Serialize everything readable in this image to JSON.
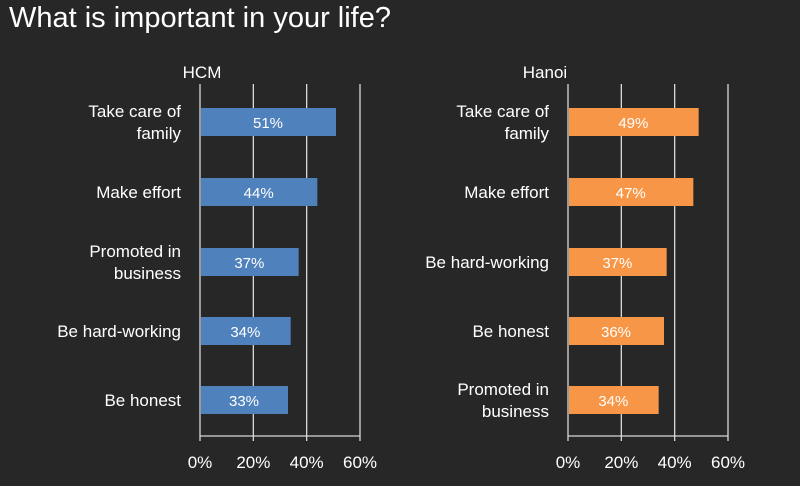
{
  "page": {
    "title": "What is important in your life?"
  },
  "chart_data": [
    {
      "type": "bar",
      "orientation": "horizontal",
      "title": "HCM",
      "color": "#4f81bd",
      "categories": [
        "Take care of family",
        "Make effort",
        "Promoted in business",
        "Be hard-working",
        "Be honest"
      ],
      "category_lines": [
        [
          "Take care of",
          "family"
        ],
        [
          "Make effort"
        ],
        [
          "Promoted in",
          "business"
        ],
        [
          "Be hard-working"
        ],
        [
          "Be honest"
        ]
      ],
      "values": [
        51,
        44,
        37,
        34,
        33
      ],
      "data_labels": [
        "51%",
        "44%",
        "37%",
        "34%",
        "33%"
      ],
      "xlim": [
        0,
        60
      ],
      "xticks": [
        0,
        20,
        40,
        60
      ],
      "xtick_labels": [
        "0%",
        "20%",
        "40%",
        "60%"
      ],
      "unit": "%",
      "grid": true
    },
    {
      "type": "bar",
      "orientation": "horizontal",
      "title": "Hanoi",
      "color": "#f79646",
      "categories": [
        "Take care of family",
        "Make effort",
        "Be hard-working",
        "Be honest",
        "Promoted in business"
      ],
      "category_lines": [
        [
          "Take care of",
          "family"
        ],
        [
          "Make effort"
        ],
        [
          "Be hard-working"
        ],
        [
          "Be honest"
        ],
        [
          "Promoted in",
          "business"
        ]
      ],
      "values": [
        49,
        47,
        37,
        36,
        34
      ],
      "data_labels": [
        "49%",
        "47%",
        "37%",
        "36%",
        "34%"
      ],
      "xlim": [
        0,
        60
      ],
      "xticks": [
        0,
        20,
        40,
        60
      ],
      "xtick_labels": [
        "0%",
        "20%",
        "40%",
        "60%"
      ],
      "unit": "%",
      "grid": true
    }
  ]
}
